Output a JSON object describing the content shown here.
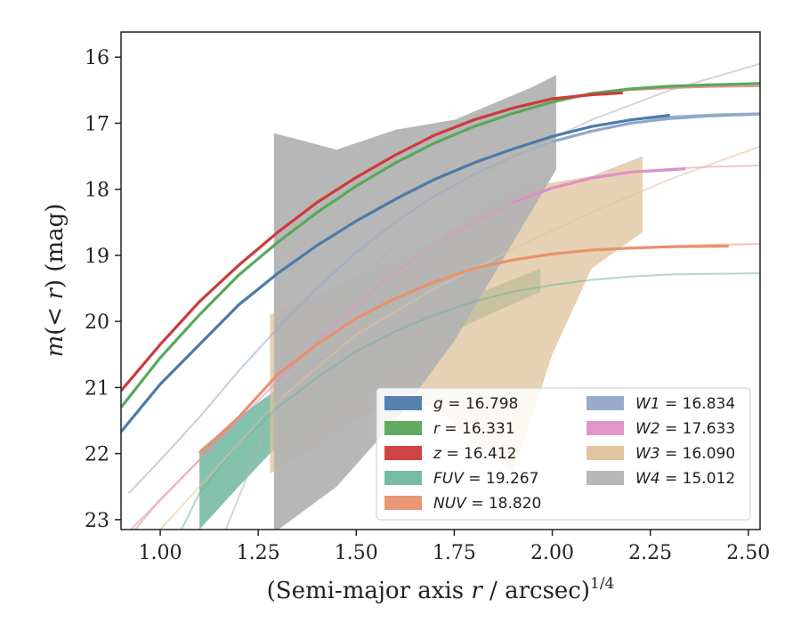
{
  "chart_data": {
    "type": "line",
    "xlabel_main": "(Semi-major axis ",
    "xlabel_var": "r",
    "xlabel_rest": " / arcsec)",
    "xlabel_sup": "1/4",
    "ylabel_pre": "m",
    "ylabel_mid": "(< ",
    "ylabel_var": "r",
    "ylabel_post": ") (mag)",
    "xlim": [
      0.9,
      2.53
    ],
    "ylim": [
      23.15,
      15.62
    ],
    "y_inverted": true,
    "xticks": [
      1.0,
      1.25,
      1.5,
      1.75,
      2.0,
      2.25,
      2.5
    ],
    "xtick_labels": [
      "1.00",
      "1.25",
      "1.50",
      "1.75",
      "2.00",
      "2.25",
      "2.50"
    ],
    "yticks": [
      16,
      17,
      18,
      19,
      20,
      21,
      22,
      23
    ],
    "ytick_labels": [
      "16",
      "17",
      "18",
      "19",
      "20",
      "21",
      "22",
      "23"
    ],
    "grid": false,
    "legend_placement": "lower-right",
    "legend_columns": 2,
    "series": [
      {
        "key": "g",
        "label": "g = 16.798",
        "color": "#4c7ba9",
        "curve_x": [
          0.9,
          1.0,
          1.1,
          1.2,
          1.3,
          1.4,
          1.5,
          1.6,
          1.7,
          1.8,
          1.9,
          2.0,
          2.1,
          2.2,
          2.3,
          2.4,
          2.53
        ],
        "curve_y": [
          21.67,
          20.95,
          20.35,
          19.75,
          19.27,
          18.85,
          18.48,
          18.15,
          17.85,
          17.6,
          17.39,
          17.2,
          17.05,
          16.95,
          16.9,
          16.87,
          16.85
        ],
        "data_x": [
          0.9,
          1.0,
          1.1,
          1.2,
          1.3,
          1.4,
          1.5,
          1.6,
          1.7,
          1.8,
          1.9,
          2.0,
          2.1,
          2.2,
          2.3
        ],
        "data_y": [
          21.67,
          20.95,
          20.35,
          19.75,
          19.27,
          18.85,
          18.48,
          18.15,
          17.85,
          17.6,
          17.39,
          17.2,
          17.05,
          16.95,
          16.88
        ]
      },
      {
        "key": "r",
        "label": "r = 16.331",
        "color": "#5aa75a",
        "curve_x": [
          0.9,
          1.0,
          1.1,
          1.2,
          1.3,
          1.4,
          1.5,
          1.6,
          1.7,
          1.8,
          1.9,
          2.0,
          2.1,
          2.2,
          2.3,
          2.4,
          2.53
        ],
        "curve_y": [
          21.3,
          20.55,
          19.9,
          19.3,
          18.8,
          18.35,
          17.95,
          17.6,
          17.3,
          17.05,
          16.85,
          16.68,
          16.55,
          16.48,
          16.44,
          16.42,
          16.4
        ],
        "data_x": [
          0.9,
          1.0,
          1.1,
          1.2,
          1.3,
          1.4,
          1.5,
          1.6,
          1.7,
          1.8,
          1.9,
          2.0,
          2.1,
          2.2,
          2.3,
          2.4,
          2.53
        ],
        "data_y": [
          21.3,
          20.55,
          19.9,
          19.3,
          18.8,
          18.35,
          17.95,
          17.6,
          17.3,
          17.05,
          16.85,
          16.68,
          16.55,
          16.48,
          16.44,
          16.42,
          16.4
        ]
      },
      {
        "key": "z",
        "label": "z = 16.412",
        "color": "#cc3b3b",
        "curve_x": [
          0.9,
          1.0,
          1.1,
          1.2,
          1.3,
          1.4,
          1.5,
          1.6,
          1.7,
          1.8,
          1.9,
          2.0,
          2.1,
          2.2,
          2.3,
          2.4,
          2.53
        ],
        "curve_y": [
          21.05,
          20.35,
          19.7,
          19.15,
          18.65,
          18.2,
          17.82,
          17.48,
          17.18,
          16.95,
          16.77,
          16.63,
          16.55,
          16.5,
          16.47,
          16.45,
          16.44
        ],
        "data_x": [
          0.9,
          1.0,
          1.1,
          1.2,
          1.3,
          1.4,
          1.5,
          1.6,
          1.7,
          1.8,
          1.9,
          2.0,
          2.1,
          2.18
        ],
        "data_y": [
          21.05,
          20.35,
          19.7,
          19.15,
          18.65,
          18.2,
          17.82,
          17.48,
          17.18,
          16.95,
          16.77,
          16.63,
          16.57,
          16.54
        ]
      },
      {
        "key": "FUV",
        "label": "FUV = 19.267",
        "color": "#6fb7a0",
        "curve_x": [
          1.05,
          1.1,
          1.2,
          1.3,
          1.4,
          1.5,
          1.6,
          1.7,
          1.8,
          1.9,
          2.0,
          2.1,
          2.2,
          2.3,
          2.4,
          2.53
        ],
        "curve_y": [
          23.2,
          22.6,
          21.85,
          21.3,
          20.85,
          20.45,
          20.15,
          19.9,
          19.7,
          19.55,
          19.45,
          19.37,
          19.32,
          19.29,
          19.28,
          19.27
        ],
        "data_x": [
          1.1,
          1.2,
          1.28,
          1.4,
          1.6,
          1.8,
          1.97
        ],
        "data_y_upper": [
          21.95,
          21.45,
          21.1,
          20.55,
          20.0,
          19.6,
          19.2
        ],
        "data_y_lower": [
          23.15,
          22.5,
          22.0,
          21.4,
          20.6,
          20.0,
          19.55
        ]
      },
      {
        "key": "NUV",
        "label": "NUV = 18.820",
        "color": "#e8916d",
        "curve_x": [
          0.9,
          1.0,
          1.1,
          1.2,
          1.3,
          1.4,
          1.5,
          1.6,
          1.7,
          1.8,
          1.9,
          2.0,
          2.1,
          2.2,
          2.3,
          2.4,
          2.53
        ],
        "curve_y": [
          23.4,
          22.7,
          22.1,
          21.45,
          20.8,
          20.35,
          19.95,
          19.65,
          19.4,
          19.2,
          19.07,
          18.98,
          18.92,
          18.88,
          18.86,
          18.84,
          18.83
        ],
        "data_x": [
          1.1,
          1.2,
          1.3,
          1.4,
          1.5,
          1.6,
          1.7,
          1.8,
          1.9,
          2.0,
          2.1,
          2.2,
          2.3,
          2.45
        ],
        "data_y": [
          22.0,
          21.45,
          20.8,
          20.35,
          19.95,
          19.65,
          19.4,
          19.2,
          19.07,
          18.98,
          18.92,
          18.89,
          18.87,
          18.86
        ]
      },
      {
        "key": "W1",
        "label": "W1 = 16.834",
        "color": "#93a7c9",
        "curve_x": [
          0.92,
          1.0,
          1.1,
          1.2,
          1.3,
          1.4,
          1.5,
          1.6,
          1.7,
          1.8,
          1.9,
          2.0,
          2.1,
          2.2,
          2.3,
          2.4,
          2.53
        ],
        "curve_y": [
          22.6,
          22.1,
          21.45,
          20.75,
          20.1,
          19.5,
          18.95,
          18.5,
          18.1,
          17.78,
          17.5,
          17.28,
          17.12,
          17.0,
          16.93,
          16.89,
          16.86
        ],
        "data_x": [
          2.0,
          2.1,
          2.2,
          2.3,
          2.4,
          2.53
        ],
        "data_y": [
          17.28,
          17.12,
          17.0,
          16.93,
          16.89,
          16.86
        ]
      },
      {
        "key": "W2",
        "label": "W2 = 17.633",
        "color": "#e08fc4",
        "curve_x": [
          0.9,
          1.0,
          1.1,
          1.2,
          1.3,
          1.4,
          1.5,
          1.6,
          1.7,
          1.8,
          1.9,
          2.0,
          2.1,
          2.2,
          2.3,
          2.4,
          2.53
        ],
        "curve_y": [
          23.3,
          22.7,
          22.1,
          21.5,
          20.9,
          20.3,
          19.75,
          19.25,
          18.85,
          18.5,
          18.2,
          17.98,
          17.83,
          17.74,
          17.69,
          17.66,
          17.64
        ],
        "data_x": [
          1.9,
          2.0,
          2.1,
          2.2,
          2.34
        ],
        "data_y": [
          18.2,
          17.98,
          17.83,
          17.74,
          17.69
        ]
      },
      {
        "key": "W3",
        "label": "W3 = 16.090",
        "color": "#dfc29b",
        "curve_x": [
          0.9,
          1.1,
          1.3,
          1.5,
          1.7,
          1.9,
          2.1,
          2.3,
          2.53
        ],
        "curve_y": [
          23.8,
          22.5,
          21.2,
          20.2,
          19.5,
          18.9,
          18.35,
          17.85,
          17.35
        ],
        "data_x": [
          1.28,
          1.4,
          1.5,
          1.6,
          1.7,
          1.8,
          1.9,
          2.0,
          2.1,
          2.23
        ],
        "data_y_upper": [
          19.9,
          19.6,
          19.3,
          19.05,
          18.75,
          18.35,
          17.95,
          17.9,
          17.8,
          17.5
        ],
        "data_y_lower": [
          22.3,
          21.9,
          21.5,
          21.2,
          21.3,
          21.8,
          22.3,
          20.5,
          19.2,
          18.65
        ]
      },
      {
        "key": "W4",
        "label": "W4 = 15.012",
        "color": "#b3b3b3",
        "curve_x": [
          1.15,
          1.3,
          1.5,
          1.7,
          1.9,
          2.1,
          2.3,
          2.53
        ],
        "curve_y": [
          23.4,
          21.2,
          19.4,
          18.3,
          17.5,
          16.95,
          16.5,
          16.1
        ],
        "data_x": [
          1.29,
          1.45,
          1.6,
          1.75,
          1.85,
          1.95,
          2.01
        ],
        "data_y_upper": [
          17.15,
          17.4,
          17.1,
          16.95,
          16.7,
          16.45,
          16.27
        ],
        "data_y_lower": [
          23.2,
          22.5,
          21.5,
          20.3,
          19.3,
          18.3,
          17.7
        ]
      }
    ]
  }
}
